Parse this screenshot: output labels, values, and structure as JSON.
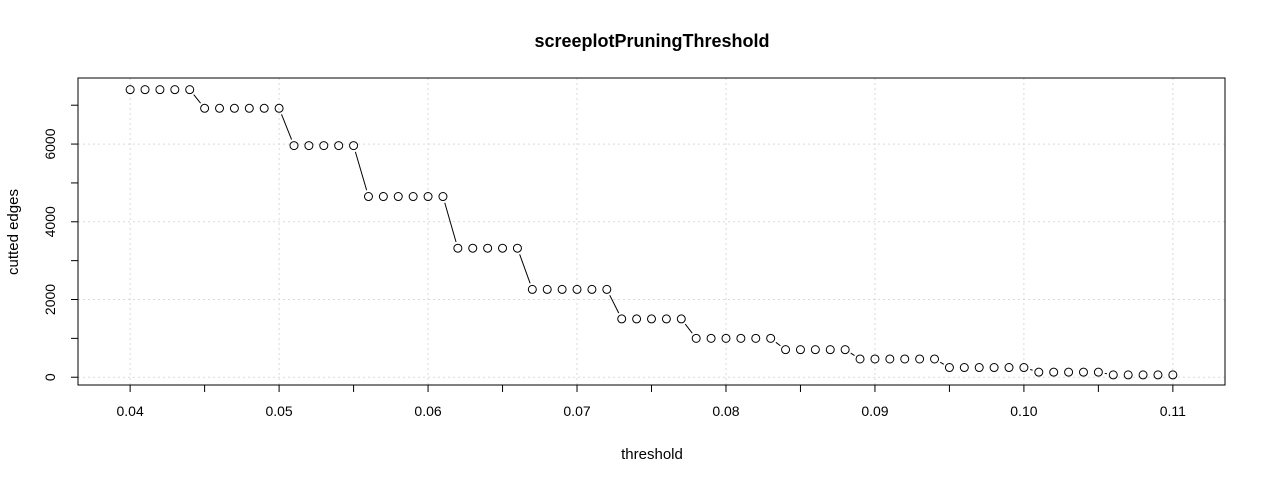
{
  "chart_data": {
    "type": "scatter",
    "title": "screeplotPruningThreshold",
    "xlabel": "threshold",
    "ylabel": "cutted edges",
    "xlim": [
      0.0365,
      0.1135
    ],
    "ylim": [
      -200,
      7700
    ],
    "x_ticks": [
      0.04,
      0.05,
      0.06,
      0.07,
      0.08,
      0.09,
      0.1,
      0.11
    ],
    "x_tick_labels": [
      "0.04",
      "0.05",
      "0.06",
      "0.07",
      "0.08",
      "0.09",
      "0.10",
      "0.11"
    ],
    "x_minor_ticks": [
      0.045,
      0.055,
      0.065,
      0.075,
      0.085,
      0.095,
      0.105
    ],
    "y_ticks": [
      0,
      2000,
      4000,
      6000
    ],
    "y_tick_labels": [
      "0",
      "2000",
      "4000",
      "6000"
    ],
    "y_minor_ticks": [
      1000,
      3000,
      5000,
      7000
    ],
    "grid": true,
    "marker": "open-circle",
    "connect_steps": true,
    "colors": {
      "points": "#000000",
      "grid": "#d9d9d9",
      "axis": "#000000"
    },
    "x": [
      0.04,
      0.041,
      0.042,
      0.043,
      0.044,
      0.045,
      0.046,
      0.047,
      0.048,
      0.049,
      0.05,
      0.051,
      0.052,
      0.053,
      0.054,
      0.055,
      0.056,
      0.057,
      0.058,
      0.059,
      0.06,
      0.061,
      0.062,
      0.063,
      0.064,
      0.065,
      0.066,
      0.067,
      0.068,
      0.069,
      0.07,
      0.071,
      0.072,
      0.073,
      0.074,
      0.075,
      0.076,
      0.077,
      0.078,
      0.079,
      0.08,
      0.081,
      0.082,
      0.083,
      0.084,
      0.085,
      0.086,
      0.087,
      0.088,
      0.089,
      0.09,
      0.091,
      0.092,
      0.093,
      0.094,
      0.095,
      0.096,
      0.097,
      0.098,
      0.099,
      0.1,
      0.101,
      0.102,
      0.103,
      0.104,
      0.105,
      0.106,
      0.107,
      0.108,
      0.109,
      0.11
    ],
    "y": [
      7400,
      7400,
      7400,
      7400,
      7400,
      6920,
      6920,
      6920,
      6920,
      6920,
      6920,
      5960,
      5960,
      5960,
      5960,
      5960,
      4650,
      4650,
      4650,
      4650,
      4650,
      4650,
      3320,
      3320,
      3320,
      3320,
      3320,
      2260,
      2260,
      2260,
      2260,
      2260,
      2260,
      1500,
      1500,
      1500,
      1500,
      1500,
      1000,
      1000,
      1000,
      1000,
      1000,
      1000,
      710,
      710,
      710,
      710,
      710,
      470,
      470,
      470,
      470,
      470,
      470,
      250,
      250,
      250,
      250,
      250,
      250,
      130,
      130,
      130,
      130,
      130,
      60,
      60,
      60,
      60,
      60
    ]
  }
}
